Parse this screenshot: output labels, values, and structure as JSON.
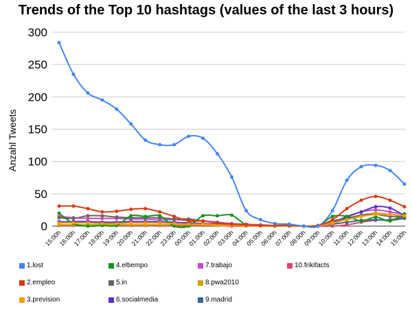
{
  "chart_data": {
    "type": "line",
    "title": "Trends of the Top 10 hashtags (values of the last 3 hours)",
    "xlabel": "",
    "ylabel": "Anzahl Tweets",
    "ylim": [
      0,
      300
    ],
    "yticks": [
      "0",
      "50",
      "100",
      "150",
      "200",
      "250",
      "300"
    ],
    "grid": "horizontal",
    "legend_position": "bottom",
    "categories": [
      "15:00h",
      "16:00h",
      "17:00h",
      "18:00h",
      "19:00h",
      "20:00h",
      "21:00h",
      "22:00h",
      "23:00h",
      "00:00h",
      "01:00h",
      "02:00h",
      "03:00h",
      "04:00h",
      "05:00h",
      "06:00h",
      "07:00h",
      "08:00h",
      "09:00h",
      "10:00h",
      "11:00h",
      "12:00h",
      "13:00h",
      "14:00h",
      "15:00h"
    ],
    "series": [
      {
        "name": "1.lost",
        "color": "#4286f5",
        "values": [
          284,
          235,
          206,
          195,
          181,
          158,
          133,
          126,
          126,
          139,
          136,
          112,
          76,
          24,
          10,
          4,
          3,
          0,
          0,
          24,
          71,
          92,
          94,
          86,
          65
        ]
      },
      {
        "name": "2.empleo",
        "color": "#dc3912",
        "values": [
          31,
          31,
          27,
          22,
          23,
          26,
          27,
          22,
          15,
          8,
          8,
          5,
          3,
          2,
          1,
          1,
          1,
          0,
          1,
          10,
          27,
          40,
          46,
          40,
          30
        ]
      },
      {
        "name": "3.prevision",
        "color": "#ff9900",
        "values": [
          5,
          5,
          5,
          4,
          4,
          5,
          5,
          5,
          4,
          3,
          3,
          2,
          1,
          1,
          0,
          0,
          0,
          0,
          0,
          5,
          10,
          15,
          18,
          18,
          16
        ]
      },
      {
        "name": "4.eltiempo",
        "color": "#109618",
        "values": [
          20,
          4,
          0,
          1,
          1,
          16,
          15,
          16,
          0,
          0,
          16,
          16,
          17,
          2,
          1,
          1,
          1,
          0,
          0,
          15,
          15,
          8,
          14,
          8,
          19
        ]
      },
      {
        "name": "5.in",
        "color": "#666666",
        "values": [
          13,
          12,
          16,
          16,
          14,
          13,
          13,
          13,
          11,
          11,
          8,
          5,
          3,
          2,
          1,
          1,
          1,
          0,
          1,
          8,
          12,
          17,
          18,
          15,
          14
        ]
      },
      {
        "name": "6.socialmedia",
        "color": "#5533cc",
        "values": [
          6,
          7,
          7,
          6,
          6,
          7,
          6,
          6,
          5,
          4,
          4,
          3,
          2,
          1,
          1,
          1,
          1,
          0,
          0,
          5,
          15,
          22,
          30,
          28,
          16
        ]
      },
      {
        "name": "7.trabajo",
        "color": "#cc44cc",
        "values": [
          15,
          13,
          12,
          12,
          12,
          11,
          11,
          10,
          10,
          9,
          8,
          6,
          4,
          3,
          2,
          1,
          1,
          0,
          1,
          7,
          14,
          22,
          25,
          22,
          18
        ]
      },
      {
        "name": "8.pwa2010",
        "color": "#cca300",
        "values": [
          2,
          2,
          2,
          2,
          2,
          2,
          2,
          2,
          2,
          2,
          2,
          1,
          1,
          0,
          0,
          0,
          0,
          0,
          0,
          4,
          12,
          17,
          20,
          18,
          15
        ]
      },
      {
        "name": "9.madrid",
        "color": "#336699",
        "values": [
          7,
          6,
          6,
          6,
          6,
          7,
          7,
          7,
          6,
          5,
          4,
          3,
          2,
          1,
          1,
          1,
          1,
          0,
          0,
          3,
          6,
          9,
          10,
          9,
          12
        ]
      },
      {
        "name": "10.frikifacts",
        "color": "#dd4477",
        "values": [
          1,
          1,
          1,
          1,
          1,
          1,
          1,
          1,
          1,
          1,
          1,
          1,
          0,
          0,
          0,
          0,
          0,
          0,
          0,
          0,
          2,
          6,
          9,
          10,
          13
        ]
      }
    ]
  }
}
